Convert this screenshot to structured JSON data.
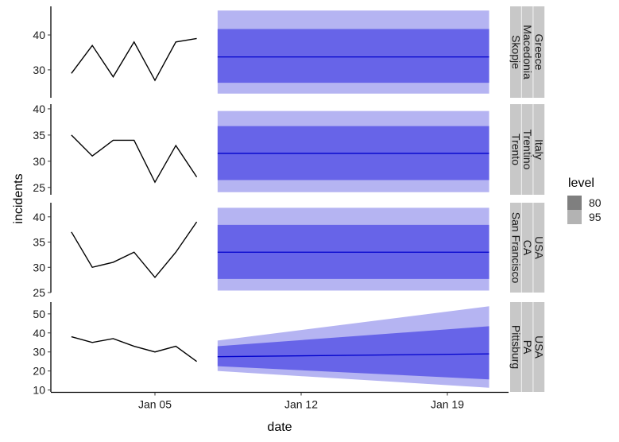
{
  "chart_data": {
    "type": "line",
    "title": "",
    "xlabel": "date",
    "ylabel": "incidents",
    "x_ticks": [
      {
        "label": "Jan 05",
        "day": 5
      },
      {
        "label": "Jan 12",
        "day": 12
      },
      {
        "label": "Jan 19",
        "day": 19
      }
    ],
    "x_range_days": [
      0,
      22
    ],
    "history_days": [
      1,
      2,
      3,
      4,
      5,
      6,
      7
    ],
    "forecast_days": [
      8,
      21
    ],
    "legend": {
      "title": "level",
      "position": "right",
      "entries": [
        {
          "label": "80",
          "color": "#7f7f7f"
        },
        {
          "label": "95",
          "color": "#b3b3b3"
        }
      ]
    },
    "colors": {
      "history_line": "#000000",
      "forecast_line": "#0000cc",
      "band_80": "#6764e8",
      "band_95": "#b5b4f2",
      "strip_bg": "#c8c8c8"
    },
    "panels": [
      {
        "strip": [
          "Greece",
          "Macedonia",
          "Skopje"
        ],
        "ylim": [
          22,
          48.2
        ],
        "y_ticks": [
          30,
          40
        ],
        "history": [
          29,
          37,
          28,
          38,
          27,
          38,
          39
        ],
        "forecast": {
          "mean": [
            33.7,
            33.7
          ],
          "lo80": [
            26.3,
            26.3
          ],
          "hi80": [
            41.7,
            41.7
          ],
          "lo95": [
            23.2,
            23.2
          ],
          "hi95": [
            47.0,
            47.0
          ]
        }
      },
      {
        "strip": [
          "Italy",
          "Trentino",
          "Trento"
        ],
        "ylim": [
          23.6,
          40.9
        ],
        "y_ticks": [
          25,
          30,
          35,
          40
        ],
        "history": [
          35,
          31,
          34,
          34,
          26,
          33,
          27
        ],
        "forecast": {
          "mean": [
            31.5,
            31.5
          ],
          "lo80": [
            26.4,
            26.4
          ],
          "hi80": [
            36.7,
            36.7
          ],
          "lo95": [
            24.1,
            24.1
          ],
          "hi95": [
            39.6,
            39.6
          ]
        }
      },
      {
        "strip": [
          "USA",
          "CA",
          "San Francisco"
        ],
        "ylim": [
          25,
          42.8
        ],
        "y_ticks": [
          25,
          30,
          35,
          40
        ],
        "history": [
          37,
          30,
          31,
          33,
          28,
          33,
          39
        ],
        "forecast": {
          "mean": [
            33.0,
            33.0
          ],
          "lo80": [
            27.7,
            27.7
          ],
          "hi80": [
            38.4,
            38.4
          ],
          "lo95": [
            25.4,
            25.4
          ],
          "hi95": [
            41.8,
            41.8
          ]
        }
      },
      {
        "strip": [
          "USA",
          "PA",
          "Pittsburg"
        ],
        "ylim": [
          9,
          56.2
        ],
        "y_ticks": [
          10,
          20,
          30,
          40,
          50
        ],
        "history": [
          38,
          35,
          37,
          33,
          30,
          33,
          25
        ],
        "forecast": {
          "mean": [
            27.5,
            29.0
          ],
          "lo80": [
            22.5,
            15.6
          ],
          "hi80": [
            33.0,
            43.5
          ],
          "lo95": [
            20.0,
            11.2
          ],
          "hi95": [
            36.0,
            54.0
          ]
        }
      }
    ]
  }
}
